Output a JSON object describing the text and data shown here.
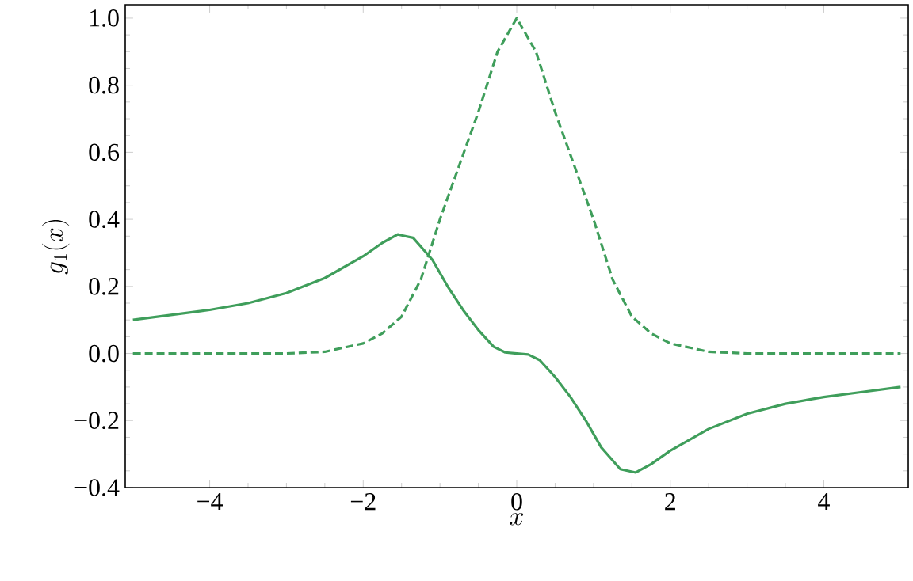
{
  "chart_data": {
    "type": "line",
    "xlabel": "x",
    "ylabel": "g_1(x)",
    "xlim": [
      -5.1,
      5.1
    ],
    "ylim": [
      -0.4,
      1.04
    ],
    "xticks": [
      {
        "value": -4,
        "label": "−4"
      },
      {
        "value": -2,
        "label": "−2"
      },
      0,
      2,
      4
    ],
    "yticks": [
      {
        "value": -0.4,
        "label": "−0.4"
      },
      {
        "value": -0.2,
        "label": "−0.2"
      },
      {
        "value": 0,
        "label": "0.0"
      },
      0.2,
      0.4,
      0.6,
      0.8,
      {
        "value": 1,
        "label": "1.0"
      }
    ],
    "marker": "none",
    "series": [
      {
        "color": "#3f9e5b",
        "line_style": "solid",
        "x": [
          -5,
          -4.5,
          -4,
          -3.5,
          -3,
          -2.5,
          -2,
          -1.75,
          -1.55,
          -1.35,
          -1.1,
          -0.9,
          -0.7,
          -0.5,
          -0.3,
          -0.15,
          0,
          0.15,
          0.3,
          0.5,
          0.7,
          0.9,
          1.1,
          1.35,
          1.55,
          1.75,
          2,
          2.5,
          3,
          3.5,
          4,
          4.5,
          5
        ],
        "values": [
          0.1,
          0.115,
          0.13,
          0.15,
          0.18,
          0.225,
          0.29,
          0.33,
          0.355,
          0.345,
          0.28,
          0.2,
          0.13,
          0.07,
          0.02,
          0.003,
          0,
          -0.003,
          -0.02,
          -0.07,
          -0.13,
          -0.2,
          -0.28,
          -0.345,
          -0.355,
          -0.33,
          -0.29,
          -0.225,
          -0.18,
          -0.15,
          -0.13,
          -0.115,
          -0.1
        ]
      },
      {
        "color": "#3f9e5b",
        "line_style": "dashed",
        "x": [
          -5,
          -3,
          -2.5,
          -2,
          -1.75,
          -1.5,
          -1.25,
          -1,
          -0.75,
          -0.5,
          -0.25,
          0,
          0.25,
          0.5,
          0.75,
          1,
          1.25,
          1.5,
          1.75,
          2,
          2.5,
          3,
          5
        ],
        "values": [
          0,
          0,
          0.005,
          0.03,
          0.06,
          0.11,
          0.22,
          0.4,
          0.56,
          0.72,
          0.9,
          1,
          0.9,
          0.72,
          0.56,
          0.4,
          0.22,
          0.11,
          0.06,
          0.03,
          0.005,
          0,
          0
        ]
      }
    ]
  }
}
